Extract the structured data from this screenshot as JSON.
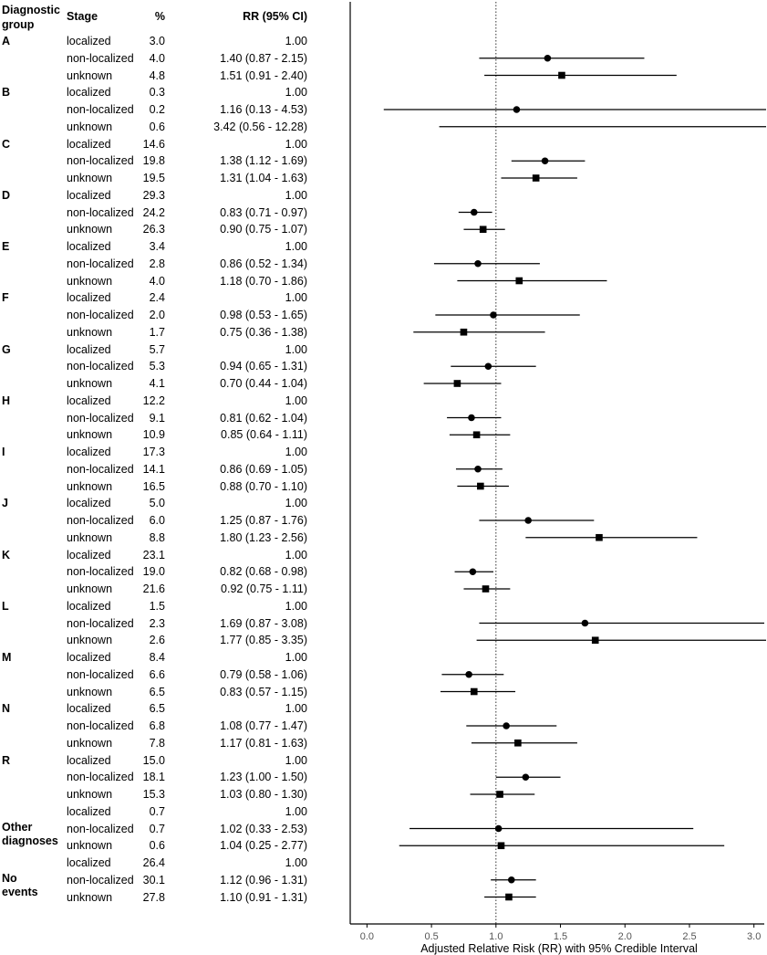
{
  "headers": {
    "group": "Diagnostic group",
    "stage": "Stage",
    "pct": "%",
    "rr": "RR (95% CI)"
  },
  "chart_data": {
    "type": "scatter",
    "title": "",
    "xlabel": "Adjusted Relative Risk (RR) with 95% Credible Interval",
    "xlim": [
      -0.13,
      3.08
    ],
    "xticks": [
      "0.0",
      "0.5",
      "1.0",
      "1.5",
      "2.0",
      "2.5",
      "3.0"
    ],
    "reference_line": 1.0,
    "grid": false,
    "markers": {
      "localized": "none",
      "non-localized": "circle",
      "unknown": "square"
    },
    "groups": [
      {
        "label": "A",
        "rows": [
          {
            "stage": "localized",
            "pct": "3.0",
            "rr_text": "1.00",
            "rr": 1.0,
            "lo": null,
            "hi": null
          },
          {
            "stage": "non-localized",
            "pct": "4.0",
            "rr_text": "1.40 (0.87 - 2.15)",
            "rr": 1.4,
            "lo": 0.87,
            "hi": 2.15
          },
          {
            "stage": "unknown",
            "pct": "4.8",
            "rr_text": "1.51 (0.91 - 2.40)",
            "rr": 1.51,
            "lo": 0.91,
            "hi": 2.4
          }
        ]
      },
      {
        "label": "B",
        "rows": [
          {
            "stage": "localized",
            "pct": "0.3",
            "rr_text": "1.00",
            "rr": 1.0,
            "lo": null,
            "hi": null
          },
          {
            "stage": "non-localized",
            "pct": "0.2",
            "rr_text": "1.16 (0.13 - 4.53)",
            "rr": 1.16,
            "lo": 0.13,
            "hi": 4.53
          },
          {
            "stage": "unknown",
            "pct": "0.6",
            "rr_text": "3.42 (0.56 - 12.28)",
            "rr": 3.42,
            "lo": 0.56,
            "hi": 12.28
          }
        ]
      },
      {
        "label": "C",
        "rows": [
          {
            "stage": "localized",
            "pct": "14.6",
            "rr_text": "1.00",
            "rr": 1.0,
            "lo": null,
            "hi": null
          },
          {
            "stage": "non-localized",
            "pct": "19.8",
            "rr_text": "1.38 (1.12 - 1.69)",
            "rr": 1.38,
            "lo": 1.12,
            "hi": 1.69
          },
          {
            "stage": "unknown",
            "pct": "19.5",
            "rr_text": "1.31 (1.04 - 1.63)",
            "rr": 1.31,
            "lo": 1.04,
            "hi": 1.63
          }
        ]
      },
      {
        "label": "D",
        "rows": [
          {
            "stage": "localized",
            "pct": "29.3",
            "rr_text": "1.00",
            "rr": 1.0,
            "lo": null,
            "hi": null
          },
          {
            "stage": "non-localized",
            "pct": "24.2",
            "rr_text": "0.83 (0.71 - 0.97)",
            "rr": 0.83,
            "lo": 0.71,
            "hi": 0.97
          },
          {
            "stage": "unknown",
            "pct": "26.3",
            "rr_text": "0.90 (0.75 - 1.07)",
            "rr": 0.9,
            "lo": 0.75,
            "hi": 1.07
          }
        ]
      },
      {
        "label": "E",
        "rows": [
          {
            "stage": "localized",
            "pct": "3.4",
            "rr_text": "1.00",
            "rr": 1.0,
            "lo": null,
            "hi": null
          },
          {
            "stage": "non-localized",
            "pct": "2.8",
            "rr_text": "0.86 (0.52 - 1.34)",
            "rr": 0.86,
            "lo": 0.52,
            "hi": 1.34
          },
          {
            "stage": "unknown",
            "pct": "4.0",
            "rr_text": "1.18 (0.70 - 1.86)",
            "rr": 1.18,
            "lo": 0.7,
            "hi": 1.86
          }
        ]
      },
      {
        "label": "F",
        "rows": [
          {
            "stage": "localized",
            "pct": "2.4",
            "rr_text": "1.00",
            "rr": 1.0,
            "lo": null,
            "hi": null
          },
          {
            "stage": "non-localized",
            "pct": "2.0",
            "rr_text": "0.98 (0.53 - 1.65)",
            "rr": 0.98,
            "lo": 0.53,
            "hi": 1.65
          },
          {
            "stage": "unknown",
            "pct": "1.7",
            "rr_text": "0.75 (0.36 - 1.38)",
            "rr": 0.75,
            "lo": 0.36,
            "hi": 1.38
          }
        ]
      },
      {
        "label": "G",
        "rows": [
          {
            "stage": "localized",
            "pct": "5.7",
            "rr_text": "1.00",
            "rr": 1.0,
            "lo": null,
            "hi": null
          },
          {
            "stage": "non-localized",
            "pct": "5.3",
            "rr_text": "0.94 (0.65 - 1.31)",
            "rr": 0.94,
            "lo": 0.65,
            "hi": 1.31
          },
          {
            "stage": "unknown",
            "pct": "4.1",
            "rr_text": "0.70 (0.44 - 1.04)",
            "rr": 0.7,
            "lo": 0.44,
            "hi": 1.04
          }
        ]
      },
      {
        "label": "H",
        "rows": [
          {
            "stage": "localized",
            "pct": "12.2",
            "rr_text": "1.00",
            "rr": 1.0,
            "lo": null,
            "hi": null
          },
          {
            "stage": "non-localized",
            "pct": "9.1",
            "rr_text": "0.81 (0.62 - 1.04)",
            "rr": 0.81,
            "lo": 0.62,
            "hi": 1.04
          },
          {
            "stage": "unknown",
            "pct": "10.9",
            "rr_text": "0.85 (0.64 - 1.11)",
            "rr": 0.85,
            "lo": 0.64,
            "hi": 1.11
          }
        ]
      },
      {
        "label": "I",
        "rows": [
          {
            "stage": "localized",
            "pct": "17.3",
            "rr_text": "1.00",
            "rr": 1.0,
            "lo": null,
            "hi": null
          },
          {
            "stage": "non-localized",
            "pct": "14.1",
            "rr_text": "0.86 (0.69 - 1.05)",
            "rr": 0.86,
            "lo": 0.69,
            "hi": 1.05
          },
          {
            "stage": "unknown",
            "pct": "16.5",
            "rr_text": "0.88 (0.70 - 1.10)",
            "rr": 0.88,
            "lo": 0.7,
            "hi": 1.1
          }
        ]
      },
      {
        "label": "J",
        "rows": [
          {
            "stage": "localized",
            "pct": "5.0",
            "rr_text": "1.00",
            "rr": 1.0,
            "lo": null,
            "hi": null
          },
          {
            "stage": "non-localized",
            "pct": "6.0",
            "rr_text": "1.25 (0.87 - 1.76)",
            "rr": 1.25,
            "lo": 0.87,
            "hi": 1.76
          },
          {
            "stage": "unknown",
            "pct": "8.8",
            "rr_text": "1.80 (1.23 - 2.56)",
            "rr": 1.8,
            "lo": 1.23,
            "hi": 2.56
          }
        ]
      },
      {
        "label": "K",
        "rows": [
          {
            "stage": "localized",
            "pct": "23.1",
            "rr_text": "1.00",
            "rr": 1.0,
            "lo": null,
            "hi": null
          },
          {
            "stage": "non-localized",
            "pct": "19.0",
            "rr_text": "0.82 (0.68 - 0.98)",
            "rr": 0.82,
            "lo": 0.68,
            "hi": 0.98
          },
          {
            "stage": "unknown",
            "pct": "21.6",
            "rr_text": "0.92 (0.75 - 1.11)",
            "rr": 0.92,
            "lo": 0.75,
            "hi": 1.11
          }
        ]
      },
      {
        "label": "L",
        "rows": [
          {
            "stage": "localized",
            "pct": "1.5",
            "rr_text": "1.00",
            "rr": 1.0,
            "lo": null,
            "hi": null
          },
          {
            "stage": "non-localized",
            "pct": "2.3",
            "rr_text": "1.69 (0.87 - 3.08)",
            "rr": 1.69,
            "lo": 0.87,
            "hi": 3.08
          },
          {
            "stage": "unknown",
            "pct": "2.6",
            "rr_text": "1.77 (0.85 - 3.35)",
            "rr": 1.77,
            "lo": 0.85,
            "hi": 3.35
          }
        ]
      },
      {
        "label": "M",
        "rows": [
          {
            "stage": "localized",
            "pct": "8.4",
            "rr_text": "1.00",
            "rr": 1.0,
            "lo": null,
            "hi": null
          },
          {
            "stage": "non-localized",
            "pct": "6.6",
            "rr_text": "0.79 (0.58 - 1.06)",
            "rr": 0.79,
            "lo": 0.58,
            "hi": 1.06
          },
          {
            "stage": "unknown",
            "pct": "6.5",
            "rr_text": "0.83 (0.57 - 1.15)",
            "rr": 0.83,
            "lo": 0.57,
            "hi": 1.15
          }
        ]
      },
      {
        "label": "N",
        "rows": [
          {
            "stage": "localized",
            "pct": "6.5",
            "rr_text": "1.00",
            "rr": 1.0,
            "lo": null,
            "hi": null
          },
          {
            "stage": "non-localized",
            "pct": "6.8",
            "rr_text": "1.08 (0.77 - 1.47)",
            "rr": 1.08,
            "lo": 0.77,
            "hi": 1.47
          },
          {
            "stage": "unknown",
            "pct": "7.8",
            "rr_text": "1.17 (0.81 - 1.63)",
            "rr": 1.17,
            "lo": 0.81,
            "hi": 1.63
          }
        ]
      },
      {
        "label": "R",
        "rows": [
          {
            "stage": "localized",
            "pct": "15.0",
            "rr_text": "1.00",
            "rr": 1.0,
            "lo": null,
            "hi": null
          },
          {
            "stage": "non-localized",
            "pct": "18.1",
            "rr_text": "1.23 (1.00 - 1.50)",
            "rr": 1.23,
            "lo": 1.0,
            "hi": 1.5
          },
          {
            "stage": "unknown",
            "pct": "15.3",
            "rr_text": "1.03 (0.80 - 1.30)",
            "rr": 1.03,
            "lo": 0.8,
            "hi": 1.3
          }
        ]
      },
      {
        "label": "Other diagnoses",
        "rows": [
          {
            "stage": "localized",
            "pct": "0.7",
            "rr_text": "1.00",
            "rr": 1.0,
            "lo": null,
            "hi": null
          },
          {
            "stage": "non-localized",
            "pct": "0.7",
            "rr_text": "1.02 (0.33 - 2.53)",
            "rr": 1.02,
            "lo": 0.33,
            "hi": 2.53
          },
          {
            "stage": "unknown",
            "pct": "0.6",
            "rr_text": "1.04 (0.25 - 2.77)",
            "rr": 1.04,
            "lo": 0.25,
            "hi": 2.77
          }
        ]
      },
      {
        "label": "No events",
        "rows": [
          {
            "stage": "localized",
            "pct": "26.4",
            "rr_text": "1.00",
            "rr": 1.0,
            "lo": null,
            "hi": null
          },
          {
            "stage": "non-localized",
            "pct": "30.1",
            "rr_text": "1.12 (0.96 - 1.31)",
            "rr": 1.12,
            "lo": 0.96,
            "hi": 1.31
          },
          {
            "stage": "unknown",
            "pct": "27.8",
            "rr_text": "1.10 (0.91 - 1.31)",
            "rr": 1.1,
            "lo": 0.91,
            "hi": 1.31
          }
        ]
      }
    ]
  }
}
